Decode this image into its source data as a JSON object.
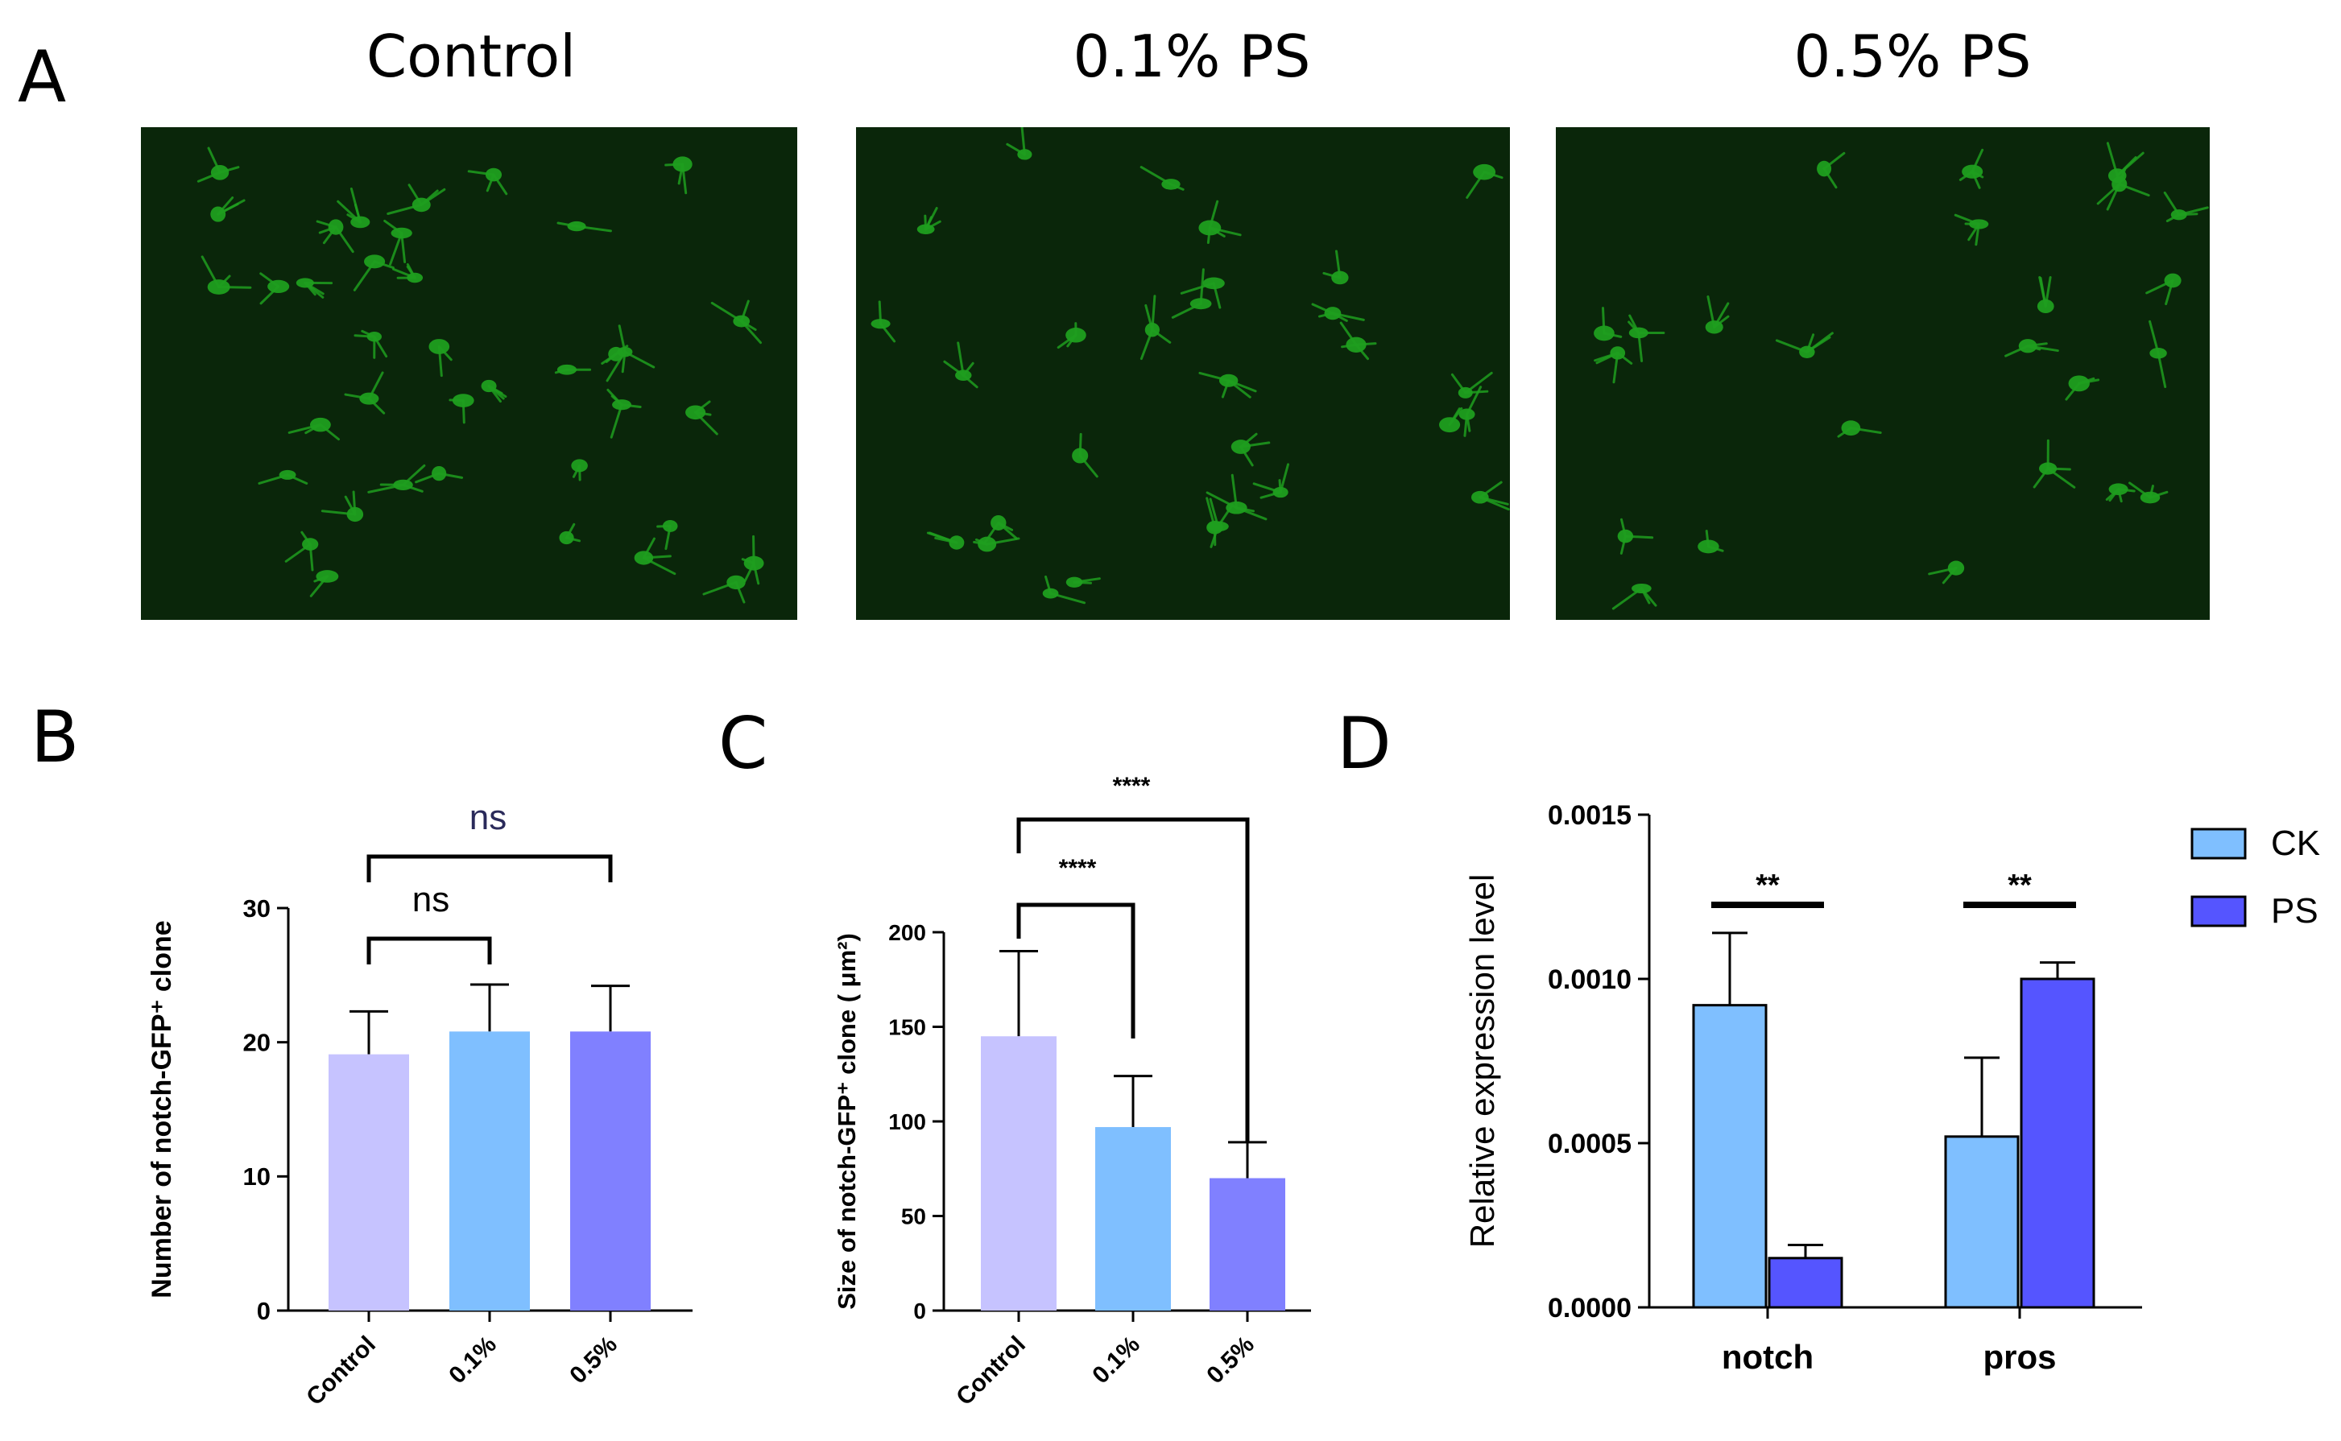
{
  "panel_labels": {
    "A": "A",
    "B": "B",
    "C": "C",
    "D": "D"
  },
  "panel_a": {
    "titles": [
      "Control",
      "0.1% PS",
      "0.5% PS"
    ],
    "image_color": "#1f9e1f"
  },
  "chart_data": [
    {
      "type": "bar",
      "panel": "B",
      "categories": [
        "Control",
        "0.1%",
        "0.5%"
      ],
      "values": [
        19.1,
        20.8,
        20.8
      ],
      "errors": [
        3.2,
        3.5,
        3.4
      ],
      "colors": [
        "#c6c3ff",
        "#7fbfff",
        "#8080ff"
      ],
      "ylabel": "Number of notch-GFP⁺ clone",
      "ylim": [
        0,
        30
      ],
      "yticks": [
        "0",
        "10",
        "20",
        "30"
      ],
      "annotations": [
        {
          "text": "ns",
          "from": "Control",
          "to": "0.1%"
        },
        {
          "text": "ns",
          "from": "Control",
          "to": "0.5%"
        }
      ]
    },
    {
      "type": "bar",
      "panel": "C",
      "categories": [
        "Control",
        "0.1%",
        "0.5%"
      ],
      "values": [
        145,
        97,
        70
      ],
      "errors": [
        45,
        27,
        19
      ],
      "colors": [
        "#c6c3ff",
        "#7fbfff",
        "#8080ff"
      ],
      "ylabel": "Size of notch-GFP⁺ clone ( μm²)",
      "ylim": [
        0,
        200
      ],
      "yticks": [
        "0",
        "50",
        "100",
        "150",
        "200"
      ],
      "annotations": [
        {
          "text": "****",
          "from": "Control",
          "to": "0.1%"
        },
        {
          "text": "****",
          "from": "Control",
          "to": "0.5%"
        }
      ]
    },
    {
      "type": "bar",
      "panel": "D",
      "categories": [
        "notch",
        "pros"
      ],
      "series": [
        {
          "name": "CK",
          "values": [
            0.00092,
            0.00052
          ],
          "errors": [
            0.00022,
            0.00024
          ],
          "color": "#7fbfff"
        },
        {
          "name": "PS",
          "values": [
            0.00015,
            0.001
          ],
          "errors": [
            4e-05,
            5e-05
          ],
          "color": "#5555ff"
        }
      ],
      "ylabel": "Relative expression level",
      "ylim": [
        0,
        0.0015
      ],
      "yticks": [
        "0.0000",
        "0.0005",
        "0.0010",
        "0.0015"
      ],
      "legend_position": "top-right",
      "annotations": [
        {
          "text": "**",
          "category": "notch"
        },
        {
          "text": "**",
          "category": "pros"
        }
      ]
    }
  ]
}
